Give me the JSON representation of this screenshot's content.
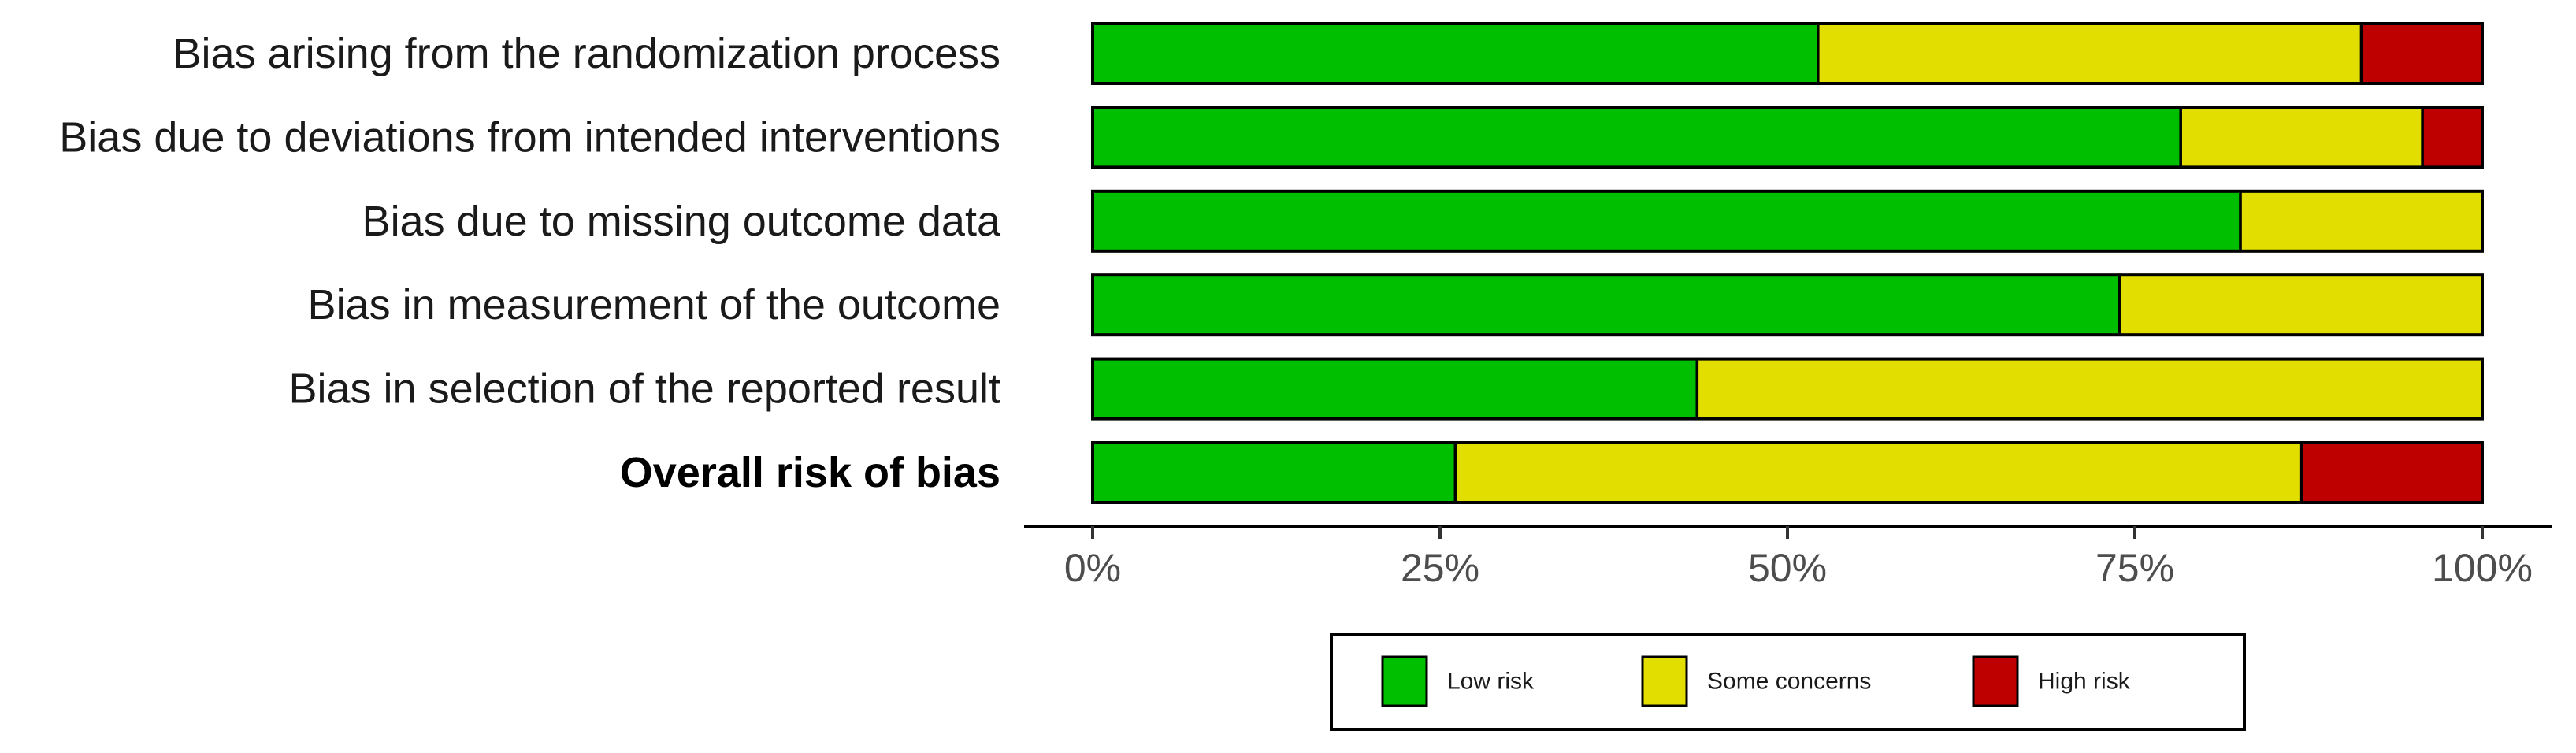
{
  "chart_data": {
    "type": "bar",
    "orientation": "horizontal",
    "stacked": true,
    "categories": [
      "Bias arising from the randomization process",
      "Bias due to deviations from intended interventions",
      "Bias due to missing outcome data",
      "Bias in measurement of the outcome",
      "Bias in selection of the reported result",
      "Overall risk of bias"
    ],
    "bold_categories": [
      "Overall risk of bias"
    ],
    "series": [
      {
        "name": "Low risk",
        "color": "#00bf00",
        "values": [
          52.2,
          78.3,
          82.6,
          73.9,
          43.5,
          26.1
        ]
      },
      {
        "name": "Some concerns",
        "color": "#e2df00",
        "values": [
          39.1,
          17.4,
          17.4,
          26.1,
          56.5,
          60.9
        ]
      },
      {
        "name": "High risk",
        "color": "#bf0000",
        "values": [
          8.7,
          4.3,
          0,
          0,
          0,
          13.0
        ]
      }
    ],
    "x_ticks": [
      "0%",
      "25%",
      "50%",
      "75%",
      "100%"
    ],
    "xlim": [
      0,
      100
    ],
    "grid": false,
    "legend_position": "bottom"
  }
}
